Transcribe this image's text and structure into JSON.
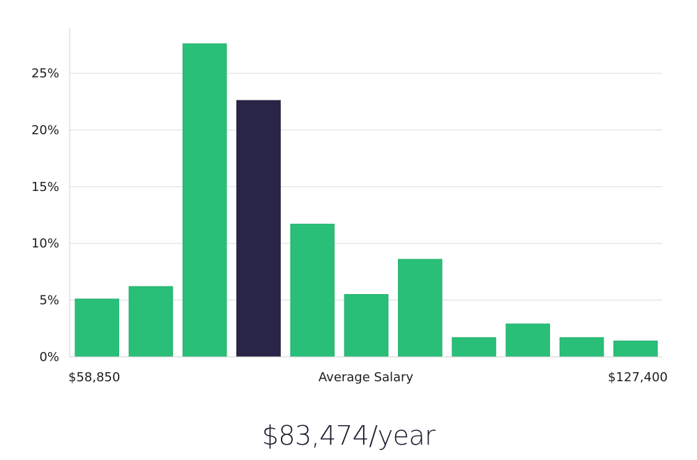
{
  "chart_data": {
    "type": "bar",
    "title": "",
    "xlabel": "Average Salary",
    "ylabel": "",
    "x_range_labels": {
      "min": "$58,850",
      "max": "$127,400"
    },
    "ylim": [
      0,
      29
    ],
    "yticks": [
      {
        "value": 0,
        "label": "0%"
      },
      {
        "value": 5,
        "label": "5%"
      },
      {
        "value": 10,
        "label": "10%"
      },
      {
        "value": 15,
        "label": "15%"
      },
      {
        "value": 20,
        "label": "20%"
      },
      {
        "value": 25,
        "label": "25%"
      }
    ],
    "values": [
      5.1,
      6.2,
      27.6,
      22.6,
      11.7,
      5.5,
      8.6,
      1.7,
      2.9,
      1.7,
      1.4
    ],
    "highlight_index": 3,
    "grid": true,
    "colors": {
      "bar": "#2abf78",
      "bar_highlight": "#282546",
      "grid": "#dcdcdc",
      "axis": "#cfcfcf"
    }
  },
  "salary_display": "$83,474/year"
}
